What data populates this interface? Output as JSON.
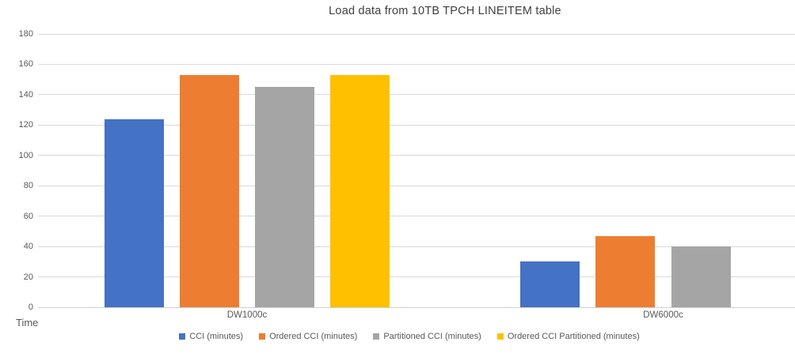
{
  "chart_data": {
    "type": "bar",
    "title": "Load data from 10TB TPCH LINEITEM table",
    "axis_title": "Time",
    "categories": [
      "DW1000c",
      "DW6000c"
    ],
    "series": [
      {
        "name": "CCI (minutes)",
        "color": "#4472C4",
        "values": [
          124,
          30
        ]
      },
      {
        "name": "Ordered CCI (minutes)",
        "color": "#ED7D31",
        "values": [
          153,
          47
        ]
      },
      {
        "name": "Partitioned CCI (minutes)",
        "color": "#A5A5A5",
        "values": [
          145,
          40
        ]
      },
      {
        "name": "Ordered CCI Partitioned (minutes)",
        "color": "#FFC000",
        "values": [
          153,
          null
        ]
      }
    ],
    "ylim": [
      0,
      180
    ],
    "yticks": [
      0,
      20,
      40,
      60,
      80,
      100,
      120,
      140,
      160,
      180
    ],
    "grid": true,
    "legend_position": "bottom",
    "colors": {
      "text": "#595959",
      "title_text": "#404040",
      "gridline": "#D9D9D9",
      "axis_line": "#D0D0D0",
      "background": "#FFFFFF"
    }
  }
}
